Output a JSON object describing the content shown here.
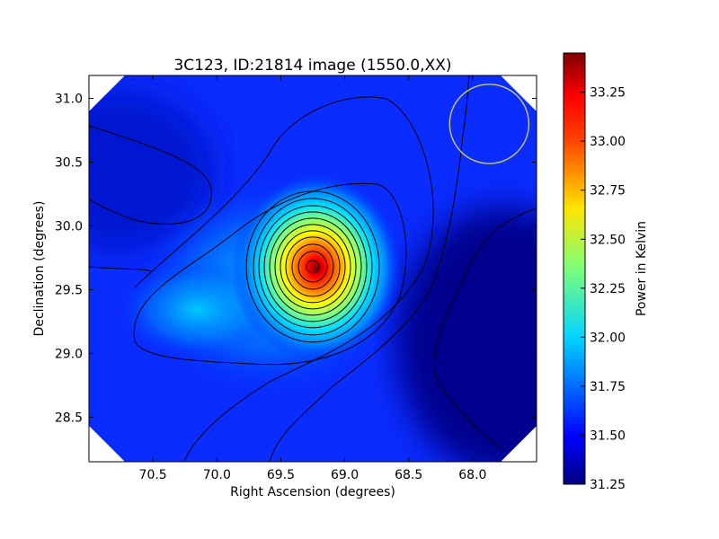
{
  "chart_data": {
    "type": "heatmap",
    "title": "3C123, ID:21814 image (1550.0,XX)",
    "xlabel": "Right Ascension (degrees)",
    "ylabel": "Declination (degrees)",
    "xlim": [
      71.0,
      67.5
    ],
    "ylim": [
      28.15,
      31.18
    ],
    "x_ticks": [
      "70.5",
      "70.0",
      "69.5",
      "69.0",
      "68.5",
      "68.0"
    ],
    "x_tick_values": [
      70.5,
      70.0,
      69.5,
      69.0,
      68.5,
      68.0
    ],
    "y_ticks": [
      "28.5",
      "29.0",
      "29.5",
      "30.0",
      "30.5",
      "31.0"
    ],
    "y_tick_values": [
      28.5,
      29.0,
      29.5,
      30.0,
      30.5,
      31.0
    ],
    "colorbar": {
      "label": "Power in Kelvin",
      "range": [
        31.25,
        33.45
      ],
      "ticks": [
        "31.25",
        "31.50",
        "31.75",
        "32.00",
        "32.25",
        "32.50",
        "32.75",
        "33.00",
        "33.25"
      ],
      "tick_values": [
        31.25,
        31.5,
        31.75,
        32.0,
        32.25,
        32.5,
        32.75,
        33.0,
        33.25
      ],
      "colormap": "jet"
    },
    "peak": {
      "ra": 69.25,
      "dec": 29.68,
      "value": 33.45
    },
    "contour_spacing": 0.125,
    "beam_circle": {
      "ra": 67.87,
      "dec": 30.8,
      "radius_deg": 0.31,
      "color": "#c8c864"
    },
    "grid": false
  }
}
